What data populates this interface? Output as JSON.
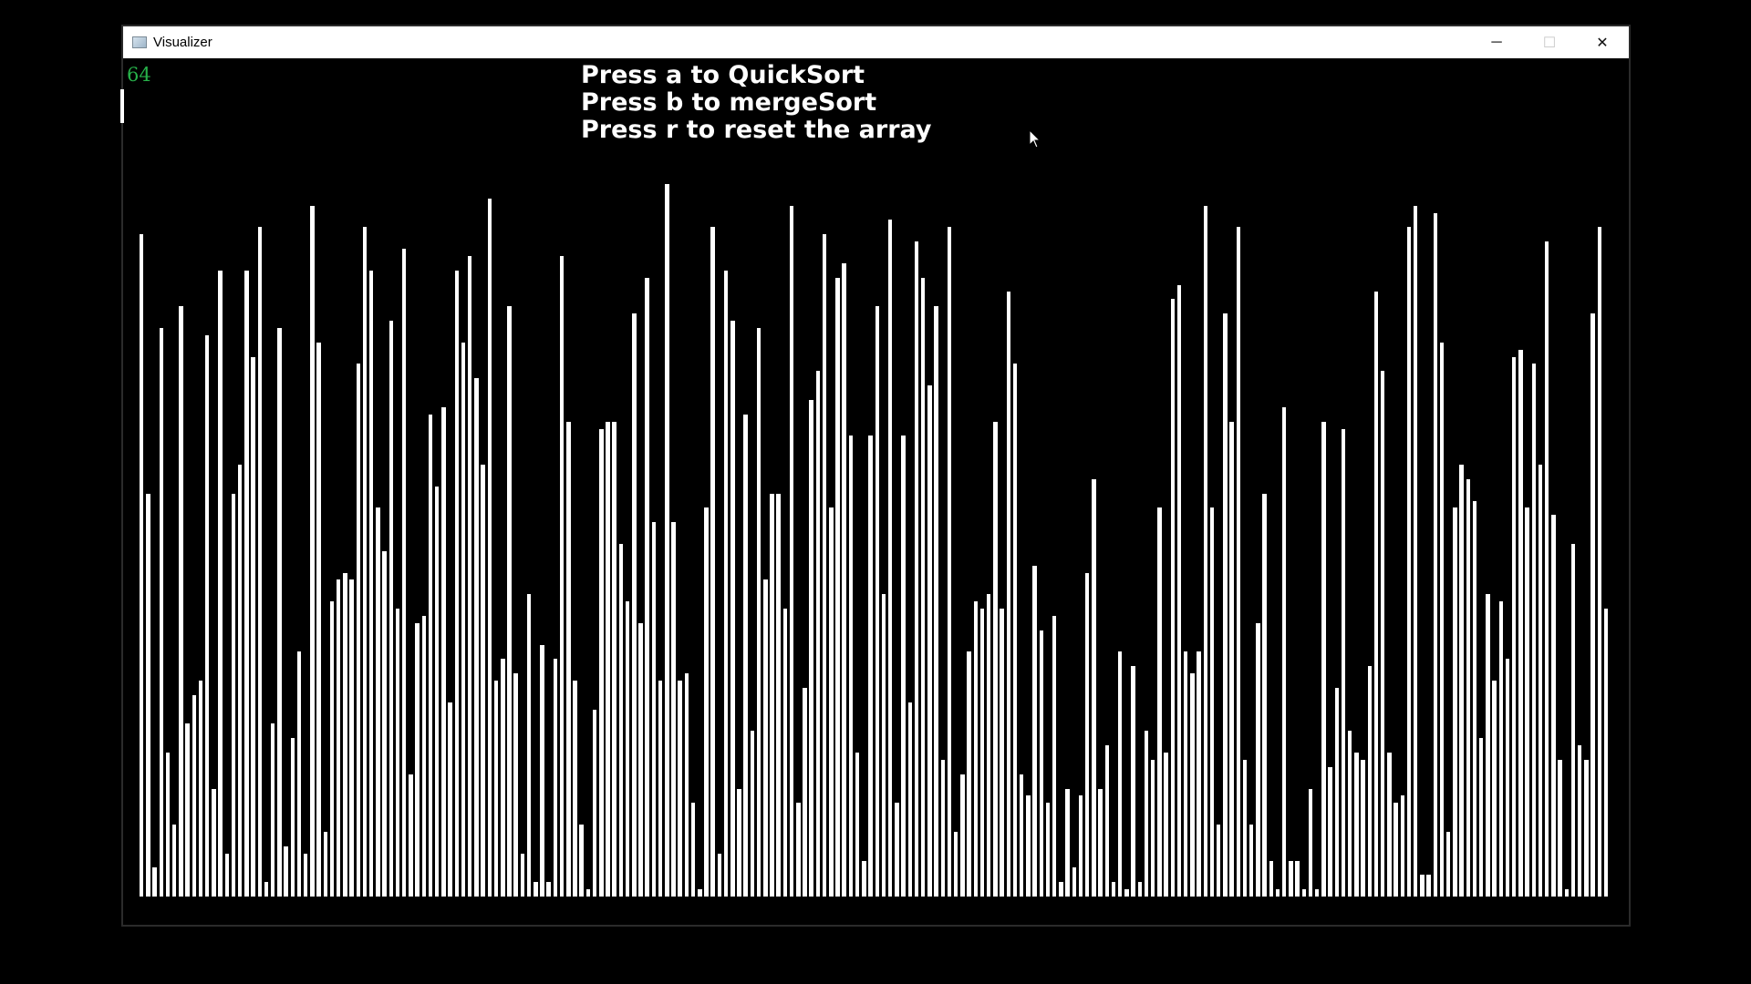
{
  "window": {
    "title": "Visualizer",
    "controls": {
      "minimize_glyph": "─",
      "maximize_glyph": "☐",
      "close_glyph": "✕"
    }
  },
  "app": {
    "counter": "64",
    "instructions": [
      "Press a to QuickSort",
      "Press b to mergeSort",
      "Press r to reset the array"
    ]
  },
  "colors": {
    "background": "#000000",
    "bar": "#ffffff",
    "counter": "#27b24a"
  },
  "chart_data": {
    "type": "bar",
    "ylim": [
      0,
      100
    ],
    "values": [
      92,
      56,
      4,
      79,
      20,
      10,
      82,
      24,
      28,
      30,
      78,
      15,
      87,
      6,
      56,
      60,
      87,
      75,
      93,
      2,
      24,
      79,
      7,
      22,
      34,
      6,
      96,
      77,
      9,
      41,
      44,
      45,
      44,
      74,
      93,
      87,
      54,
      48,
      80,
      40,
      90,
      17,
      38,
      39,
      67,
      57,
      68,
      27,
      87,
      77,
      89,
      72,
      60,
      97,
      30,
      33,
      82,
      31,
      6,
      42,
      2,
      35,
      2,
      33,
      89,
      66,
      30,
      10,
      1,
      26,
      65,
      66,
      66,
      49,
      41,
      81,
      38,
      86,
      52,
      30,
      99,
      52,
      30,
      31,
      13,
      1,
      54,
      93,
      6,
      87,
      80,
      15,
      67,
      23,
      79,
      44,
      56,
      56,
      40,
      96,
      13,
      29,
      69,
      73,
      92,
      54,
      86,
      88,
      64,
      20,
      5,
      64,
      82,
      42,
      94,
      13,
      64,
      27,
      91,
      86,
      71,
      82,
      19,
      93,
      9,
      17,
      34,
      41,
      40,
      42,
      66,
      40,
      84,
      74,
      17,
      14,
      46,
      37,
      13,
      39,
      2,
      15,
      4,
      14,
      45,
      58,
      15,
      21,
      2,
      34,
      1,
      32,
      2,
      23,
      19,
      54,
      20,
      83,
      85,
      34,
      31,
      34,
      96,
      54,
      10,
      81,
      66,
      93,
      19,
      10,
      38,
      56,
      5,
      1,
      68,
      5,
      5,
      1,
      15,
      1,
      66,
      18,
      29,
      65,
      23,
      20,
      19,
      32,
      84,
      73,
      20,
      13,
      14,
      93,
      96,
      3,
      3,
      95,
      77,
      9,
      54,
      60,
      58,
      55,
      22,
      42,
      30,
      41,
      33,
      75,
      76,
      54,
      74,
      60,
      91,
      53,
      19,
      1,
      49,
      21,
      19,
      81,
      93,
      40
    ]
  }
}
